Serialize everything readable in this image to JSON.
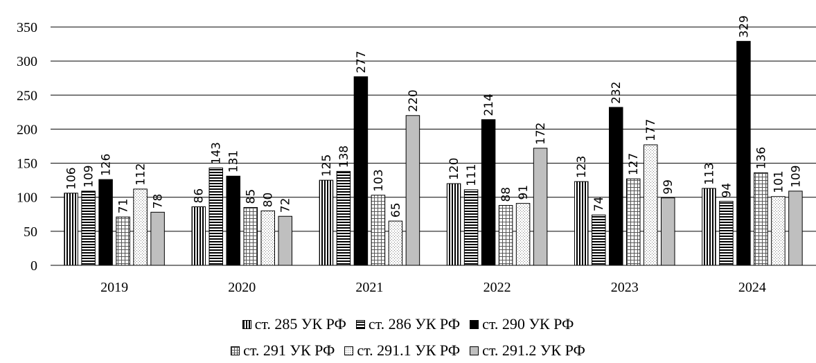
{
  "chart_data": {
    "type": "bar",
    "categories": [
      "2019",
      "2020",
      "2021",
      "2022",
      "2023",
      "2024"
    ],
    "series": [
      {
        "name": "ст. 285 УК РФ",
        "values": [
          106,
          86,
          125,
          120,
          123,
          113
        ],
        "fill": "vertical-stripes",
        "color": "#000000"
      },
      {
        "name": "ст. 286 УК РФ",
        "values": [
          109,
          143,
          138,
          111,
          74,
          94
        ],
        "fill": "horizontal-stripes",
        "color": "#000000"
      },
      {
        "name": "ст. 290 УК РФ",
        "values": [
          126,
          131,
          277,
          214,
          232,
          329
        ],
        "fill": "solid",
        "color": "#000000"
      },
      {
        "name": "ст. 291 УК РФ",
        "values": [
          71,
          85,
          103,
          88,
          127,
          136
        ],
        "fill": "grid",
        "color": "#7a7a7a"
      },
      {
        "name": "ст. 291.1 УК РФ",
        "values": [
          112,
          80,
          65,
          91,
          177,
          101
        ],
        "fill": "dots",
        "color": "#9a9a9a"
      },
      {
        "name": "ст. 291.2 УК РФ",
        "values": [
          78,
          72,
          220,
          172,
          99,
          109
        ],
        "fill": "solid",
        "color": "#bfbfbf"
      }
    ],
    "y_ticks": [
      "0",
      "50",
      "100",
      "150",
      "200",
      "250",
      "300",
      "350"
    ],
    "ylim": [
      0,
      350
    ],
    "grid": true,
    "legend_position": "bottom"
  }
}
